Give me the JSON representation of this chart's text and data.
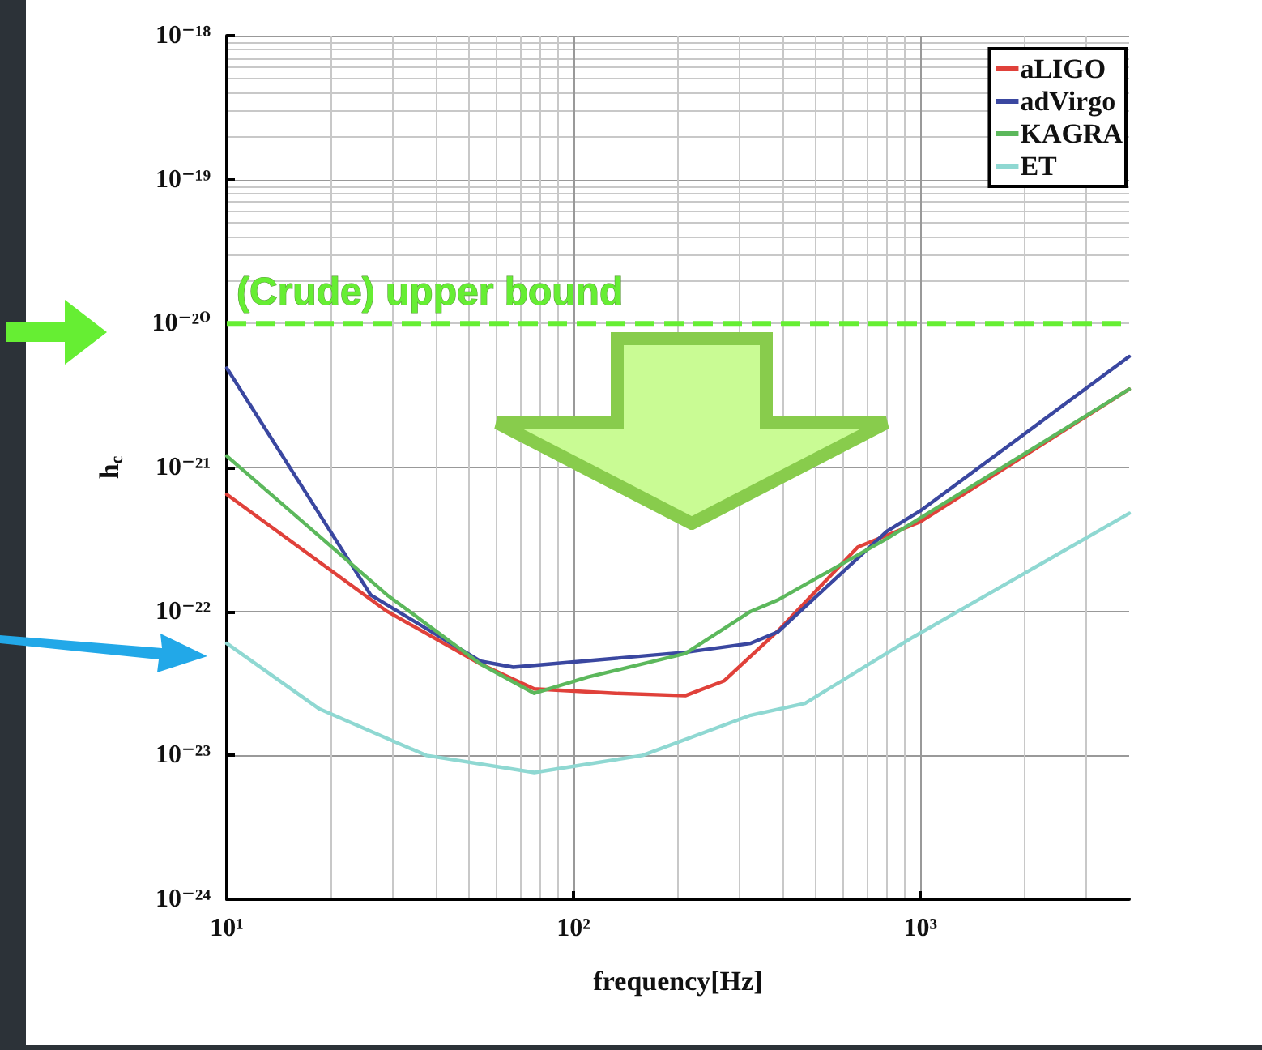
{
  "chart_data": {
    "type": "line",
    "xlabel": "frequency[Hz]",
    "ylabel": "h$_{c}$",
    "log": "xy",
    "grid": true,
    "legend": "top right",
    "line_style": "solid",
    "marker": "none",
    "xlim": [
      10,
      4000
    ],
    "xticks": [
      {
        "value": 10,
        "label": "10¹"
      },
      {
        "value": 100,
        "label": "10²"
      },
      {
        "value": 1000,
        "label": "10³"
      }
    ],
    "ylim": [
      1e-24,
      1e-18
    ],
    "yticks": [
      {
        "value": 1e-24,
        "label": "10⁻²⁴"
      },
      {
        "value": 1e-23,
        "label": "10⁻²³"
      },
      {
        "value": 1e-22,
        "label": "10⁻²²"
      },
      {
        "value": 1e-21,
        "label": "10⁻²¹"
      },
      {
        "value": 1e-20,
        "label": "10⁻²⁰"
      },
      {
        "value": 1e-19,
        "label": "10⁻¹⁹"
      },
      {
        "value": 1e-18,
        "label": "10⁻¹⁸"
      }
    ],
    "series": [
      {
        "name": "aLIGO",
        "color": "#e0413a",
        "x": [
          10,
          29,
          54,
          77,
          132,
          210,
          272,
          388,
          660,
          1000,
          4000
        ],
        "values": [
          6.5e-22,
          1e-22,
          4.3e-23,
          2.9e-23,
          2.7e-23,
          2.6e-23,
          3.3e-23,
          7.3e-23,
          2.8e-22,
          4.2e-22,
          3.5e-21
        ]
      },
      {
        "name": "adVirgo",
        "color": "#3a47a0",
        "x": [
          10,
          26,
          54,
          67,
          210,
          324,
          388,
          800,
          1000,
          4000
        ],
        "values": [
          4.9e-21,
          1.3e-22,
          4.5e-23,
          4.1e-23,
          5.2e-23,
          6e-23,
          7.2e-23,
          3.6e-22,
          5e-22,
          5.9e-21
        ]
      },
      {
        "name": "KAGRA",
        "color": "#5cb85c",
        "x": [
          10,
          29,
          54,
          77,
          110,
          210,
          324,
          388,
          800,
          4000
        ],
        "values": [
          1.2e-21,
          1.3e-22,
          4.3e-23,
          2.7e-23,
          3.5e-23,
          5.1e-23,
          1e-22,
          1.2e-22,
          3.2e-22,
          3.5e-21
        ]
      },
      {
        "name": "ET",
        "color": "#8fd8d2",
        "x": [
          10,
          18.5,
          37.6,
          77,
          158,
          324,
          465,
          950,
          4000
        ],
        "values": [
          6e-23,
          2.1e-23,
          1e-23,
          7.6e-24,
          1e-23,
          1.9e-23,
          2.3e-23,
          6.6e-23,
          4.8e-22
        ]
      }
    ],
    "ref_lines": [
      {
        "axis": "y",
        "value": 1e-20,
        "label": "(Crude) upper bound",
        "color": "#66ee33",
        "line_style": "dashed"
      }
    ]
  }
}
